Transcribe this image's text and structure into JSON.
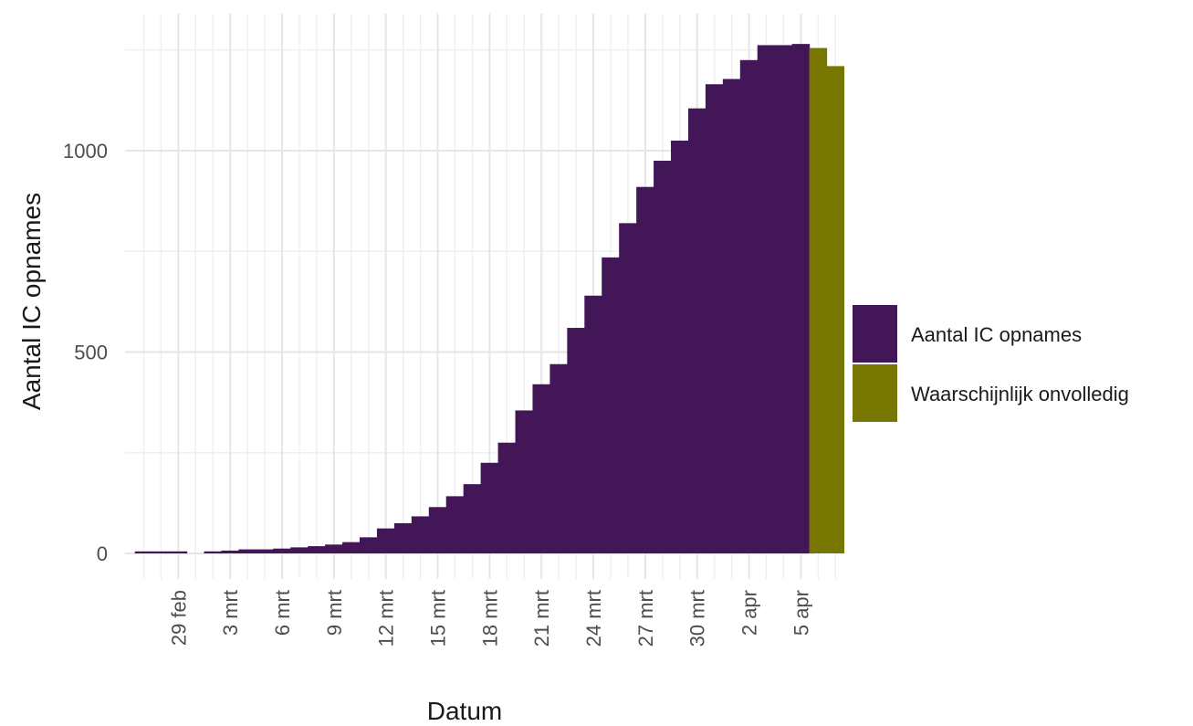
{
  "chart_data": {
    "type": "bar",
    "xlabel": "Datum",
    "ylabel": "Aantal IC opnames",
    "ylim": [
      -50,
      1300
    ],
    "grid": true,
    "legend": "right",
    "x_ticks": [
      "29 feb",
      "3 mrt",
      "6 mrt",
      "9 mrt",
      "12 mrt",
      "15 mrt",
      "18 mrt",
      "21 mrt",
      "24 mrt",
      "27 mrt",
      "30 mrt",
      "2 apr",
      "5 apr"
    ],
    "y_ticks": [
      0,
      500,
      1000
    ],
    "categories": [
      "2020-02-27",
      "2020-02-28",
      "2020-02-29",
      "2020-03-01",
      "2020-03-02",
      "2020-03-03",
      "2020-03-04",
      "2020-03-05",
      "2020-03-06",
      "2020-03-07",
      "2020-03-08",
      "2020-03-09",
      "2020-03-10",
      "2020-03-11",
      "2020-03-12",
      "2020-03-13",
      "2020-03-14",
      "2020-03-15",
      "2020-03-16",
      "2020-03-17",
      "2020-03-18",
      "2020-03-19",
      "2020-03-20",
      "2020-03-21",
      "2020-03-22",
      "2020-03-23",
      "2020-03-24",
      "2020-03-25",
      "2020-03-26",
      "2020-03-27",
      "2020-03-28",
      "2020-03-29",
      "2020-03-30",
      "2020-03-31",
      "2020-04-01",
      "2020-04-02",
      "2020-04-03",
      "2020-04-04",
      "2020-04-05",
      "2020-04-06",
      "2020-04-07"
    ],
    "series": [
      {
        "name": "Aantal IC opnames",
        "color": "#421657",
        "values": [
          5,
          5,
          5,
          null,
          5,
          7,
          10,
          10,
          12,
          15,
          18,
          22,
          28,
          40,
          62,
          75,
          92,
          115,
          142,
          172,
          225,
          275,
          355,
          420,
          470,
          560,
          640,
          735,
          820,
          910,
          975,
          1025,
          1105,
          1165,
          1178,
          1225,
          1262,
          1262,
          1265,
          null,
          null
        ]
      },
      {
        "name": "Waarschijnlijk onvolledig",
        "color": "#767600",
        "values": [
          null,
          null,
          null,
          null,
          null,
          null,
          null,
          null,
          null,
          null,
          null,
          null,
          null,
          null,
          null,
          null,
          null,
          null,
          null,
          null,
          null,
          null,
          null,
          null,
          null,
          null,
          null,
          null,
          null,
          null,
          null,
          null,
          null,
          null,
          null,
          null,
          null,
          null,
          null,
          1255,
          1210
        ]
      }
    ]
  }
}
